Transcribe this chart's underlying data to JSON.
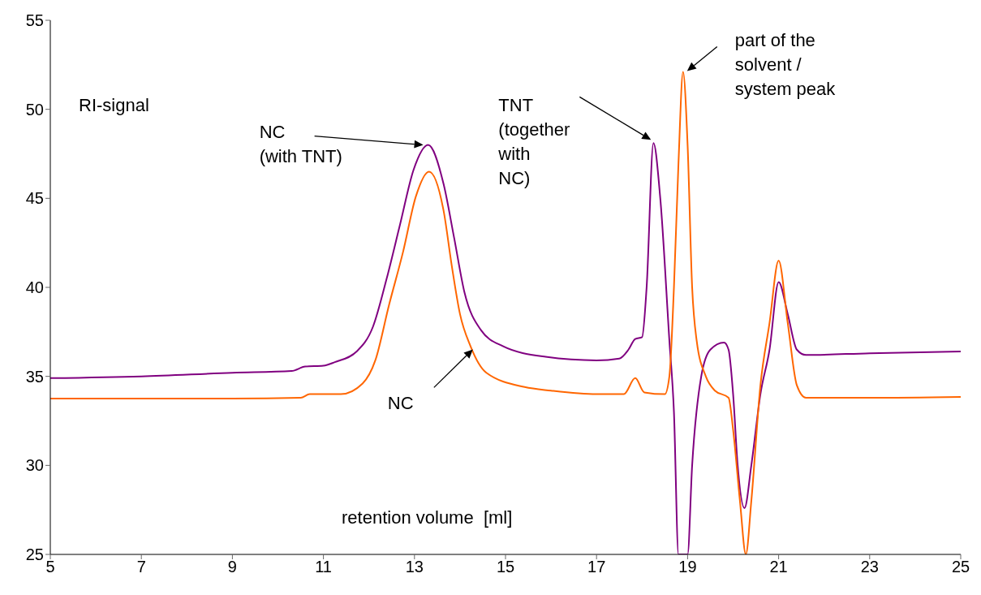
{
  "chart_data": {
    "type": "line",
    "xlabel": "retention volume  [ml]",
    "ylabel": "RI-signal",
    "xlim": [
      5,
      25
    ],
    "xticks": [
      5,
      7,
      9,
      11,
      13,
      15,
      17,
      19,
      21,
      23,
      25
    ],
    "ylim": [
      25,
      55
    ],
    "yticks": [
      25,
      30,
      35,
      40,
      45,
      50,
      55
    ],
    "grid": false,
    "marker": "none",
    "line_style": "solid",
    "series": [
      {
        "color": "#800080",
        "x": [
          5,
          7,
          9,
          10.3,
          10.6,
          11,
          11.25,
          11.73,
          12.09,
          12.39,
          12.68,
          12.98,
          13.3,
          13.64,
          13.87,
          14.1,
          14.46,
          14.94,
          15.88,
          17,
          17.5,
          17.7,
          17.85,
          18,
          18.1,
          18.25,
          18.4,
          18.6,
          18.7,
          18.8,
          19,
          19.1,
          19.3,
          19.5,
          19.8,
          19.9,
          20,
          20.1,
          20.25,
          20.4,
          20.6,
          20.8,
          21,
          21.2,
          21.4,
          21.6,
          23,
          25
        ],
        "values": [
          34.9,
          35,
          35.2,
          35.3,
          35.55,
          35.6,
          35.8,
          36.4,
          37.8,
          40.5,
          43.5,
          46.6,
          48,
          45.8,
          42.8,
          39.7,
          37.6,
          36.7,
          36.1,
          35.9,
          36,
          36.5,
          37.1,
          37.2,
          40,
          48.1,
          45,
          37,
          33,
          25,
          25,
          30,
          35,
          36.5,
          36.9,
          36.5,
          34,
          30,
          27.6,
          30,
          34,
          36.5,
          40.3,
          38.5,
          36.5,
          36.2,
          36.3,
          36.4
        ]
      },
      {
        "color": "#ff6600",
        "x": [
          5,
          7,
          9,
          10.5,
          10.7,
          11.38,
          11.86,
          12.14,
          12.44,
          12.75,
          13.03,
          13.32,
          13.64,
          13.82,
          14,
          14.23,
          14.58,
          15.42,
          16,
          17,
          17.6,
          17.85,
          18.05,
          18.5,
          18.6,
          18.7,
          18.8,
          18.9,
          19,
          19.1,
          19.2,
          19.4,
          19.6,
          19.9,
          20,
          20.15,
          20.28,
          20.4,
          20.6,
          20.8,
          21,
          21.2,
          21.4,
          21.6,
          23,
          25
        ],
        "values": [
          33.75,
          33.75,
          33.75,
          33.8,
          34,
          34,
          34.6,
          35.9,
          39,
          42,
          45.1,
          46.5,
          44.3,
          41.2,
          38.5,
          36.7,
          35.2,
          34.4,
          34.2,
          34,
          34,
          34.9,
          34.1,
          34,
          35,
          40,
          47,
          52.1,
          48,
          40,
          37,
          35,
          34.2,
          33.8,
          32,
          28,
          25,
          28,
          34.5,
          38,
          41.5,
          38,
          34.5,
          33.8,
          33.8,
          33.85
        ]
      }
    ],
    "annotations": [
      "NC\n(with TNT)",
      "NC",
      "TNT\n(together\nwith\nNC)",
      {
        "text": "part of the\nsolvent /\nsystem peak",
        "x": 18.9,
        "y": 52.1
      }
    ]
  }
}
